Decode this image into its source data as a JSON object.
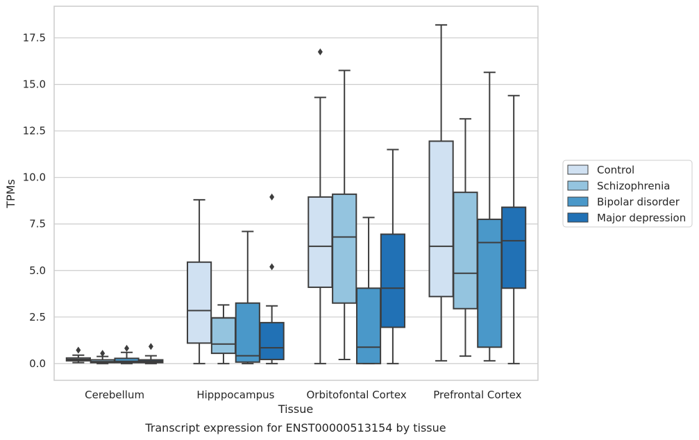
{
  "chart_data": {
    "type": "box",
    "caption": "Transcript expression for ENST00000513154 by tissue",
    "xlabel": "Tissue",
    "ylabel": "TPMs",
    "ylim": [
      -0.9,
      19.2
    ],
    "yticks": [
      "0.0",
      "2.5",
      "5.0",
      "7.5",
      "10.0",
      "12.5",
      "15.0",
      "17.5"
    ],
    "ytick_values": [
      0,
      2.5,
      5,
      7.5,
      10,
      12.5,
      15,
      17.5
    ],
    "categories": [
      "Cerebellum",
      "Hipppocampus",
      "Orbitofontal Cortex",
      "Prefrontal Cortex"
    ],
    "grid": "horizontal",
    "legend_placement": "right",
    "series": [
      {
        "name": "Control",
        "color": "#d0e1f2",
        "boxes": [
          {
            "whislo": 0.05,
            "q1": 0.15,
            "med": 0.22,
            "q3": 0.3,
            "whishi": 0.45,
            "fliers": [
              0.72
            ]
          },
          {
            "whislo": 0.0,
            "q1": 1.1,
            "med": 2.85,
            "q3": 5.45,
            "whishi": 8.8,
            "fliers": []
          },
          {
            "whislo": 0.0,
            "q1": 4.1,
            "med": 6.3,
            "q3": 8.95,
            "whishi": 14.3,
            "fliers": [
              16.75
            ]
          },
          {
            "whislo": 0.15,
            "q1": 3.6,
            "med": 6.3,
            "q3": 11.95,
            "whishi": 18.2,
            "fliers": []
          }
        ]
      },
      {
        "name": "Schizophrenia",
        "color": "#94c4df",
        "boxes": [
          {
            "whislo": 0.0,
            "q1": 0.05,
            "med": 0.1,
            "q3": 0.2,
            "whishi": 0.38,
            "fliers": [
              0.55
            ]
          },
          {
            "whislo": 0.0,
            "q1": 0.55,
            "med": 1.05,
            "q3": 2.45,
            "whishi": 3.15,
            "fliers": []
          },
          {
            "whislo": 0.22,
            "q1": 3.25,
            "med": 6.8,
            "q3": 9.1,
            "whishi": 15.75,
            "fliers": []
          },
          {
            "whislo": 0.4,
            "q1": 2.95,
            "med": 4.85,
            "q3": 9.2,
            "whishi": 13.15,
            "fliers": []
          }
        ]
      },
      {
        "name": "Bipolar disorder",
        "color": "#4a98c9",
        "boxes": [
          {
            "whislo": 0.0,
            "q1": 0.05,
            "med": 0.12,
            "q3": 0.28,
            "whishi": 0.6,
            "fliers": [
              0.82
            ]
          },
          {
            "whislo": 0.0,
            "q1": 0.08,
            "med": 0.42,
            "q3": 3.25,
            "whishi": 7.1,
            "fliers": []
          },
          {
            "whislo": 0.0,
            "q1": 0.0,
            "med": 0.88,
            "q3": 4.05,
            "whishi": 7.85,
            "fliers": []
          },
          {
            "whislo": 0.15,
            "q1": 0.88,
            "med": 6.5,
            "q3": 7.75,
            "whishi": 15.65,
            "fliers": []
          }
        ]
      },
      {
        "name": "Major depression",
        "color": "#2171b5",
        "boxes": [
          {
            "whislo": 0.0,
            "q1": 0.05,
            "med": 0.12,
            "q3": 0.2,
            "whishi": 0.42,
            "fliers": [
              0.92
            ]
          },
          {
            "whislo": 0.0,
            "q1": 0.22,
            "med": 0.85,
            "q3": 2.2,
            "whishi": 3.1,
            "fliers": [
              5.2,
              8.95
            ]
          },
          {
            "whislo": 0.0,
            "q1": 1.95,
            "med": 4.05,
            "q3": 6.95,
            "whishi": 11.5,
            "fliers": []
          },
          {
            "whislo": 0.0,
            "q1": 4.05,
            "med": 6.6,
            "q3": 8.4,
            "whishi": 14.4,
            "fliers": []
          }
        ]
      }
    ]
  }
}
